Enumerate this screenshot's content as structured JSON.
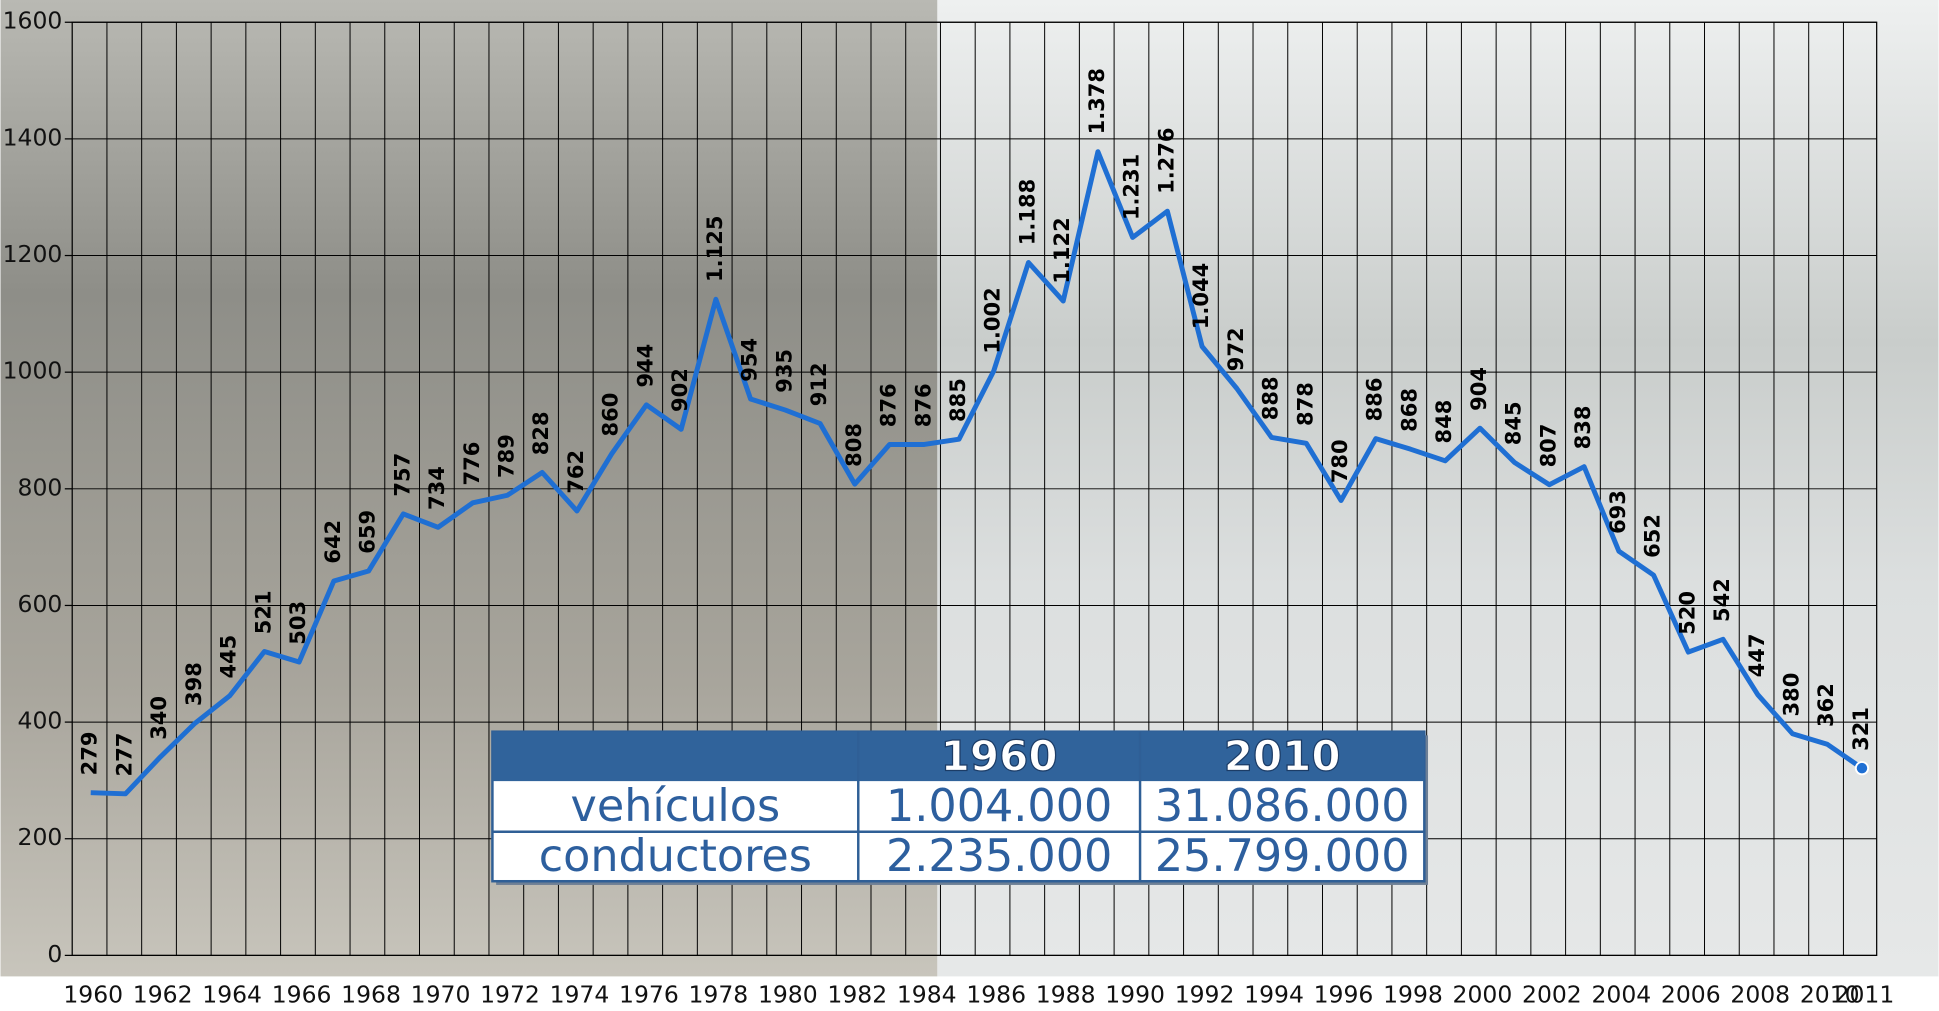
{
  "chart_data": {
    "type": "line",
    "categories": [
      "1960",
      null,
      "1962",
      null,
      "1964",
      null,
      "1966",
      null,
      "1968",
      null,
      "1970",
      null,
      "1972",
      null,
      "1974",
      null,
      "1976",
      null,
      "1978",
      null,
      "1980",
      null,
      "1982",
      null,
      "1984",
      null,
      "1986",
      null,
      "1988",
      null,
      "1990",
      null,
      "1992",
      null,
      "1994",
      null,
      "1996",
      null,
      "1998",
      null,
      "2000",
      null,
      "2002",
      null,
      "2004",
      null,
      "2006",
      null,
      "2008",
      null,
      "2010",
      "2011"
    ],
    "series": [
      {
        "color": "#1f6fd3",
        "values": [
          279,
          277,
          340,
          398,
          445,
          521,
          503,
          642,
          659,
          757,
          734,
          776,
          789,
          828,
          762,
          860,
          944,
          902,
          1125,
          954,
          935,
          912,
          808,
          876,
          876,
          885,
          1002,
          1188,
          1122,
          1378,
          1231,
          1276,
          1044,
          972,
          888,
          878,
          780,
          886,
          868,
          848,
          904,
          845,
          807,
          838,
          693,
          652,
          520,
          542,
          447,
          380,
          362,
          321
        ],
        "value_labels": [
          "279",
          "277",
          "340",
          "398",
          "445",
          "521",
          "503",
          "642",
          "659",
          "757",
          "734",
          "776",
          "789",
          "828",
          "762",
          "860",
          "944",
          "902",
          "1.125",
          "954",
          "935",
          "912",
          "808",
          "876",
          "876",
          "885",
          "1.002",
          "1.188",
          "1.122",
          "1.378",
          "1.231",
          "1.276",
          "1.044",
          "972",
          "888",
          "878",
          "780",
          "886",
          "868",
          "848",
          "904",
          "845",
          "807",
          "838",
          "693",
          "652",
          "520",
          "542",
          "447",
          "380",
          "362",
          "321"
        ]
      }
    ],
    "ylim": [
      0,
      1600
    ],
    "yticks": [
      0,
      200,
      400,
      600,
      800,
      1000,
      1200,
      1400,
      1600
    ],
    "grid": true
  },
  "table": {
    "headers": [
      "1960",
      "2010"
    ],
    "rows": [
      {
        "label": "vehículos",
        "values": [
          "1.004.000",
          "31.086.000"
        ]
      },
      {
        "label": "conductores",
        "values": [
          "2.235.000",
          "25.799.000"
        ]
      }
    ]
  }
}
